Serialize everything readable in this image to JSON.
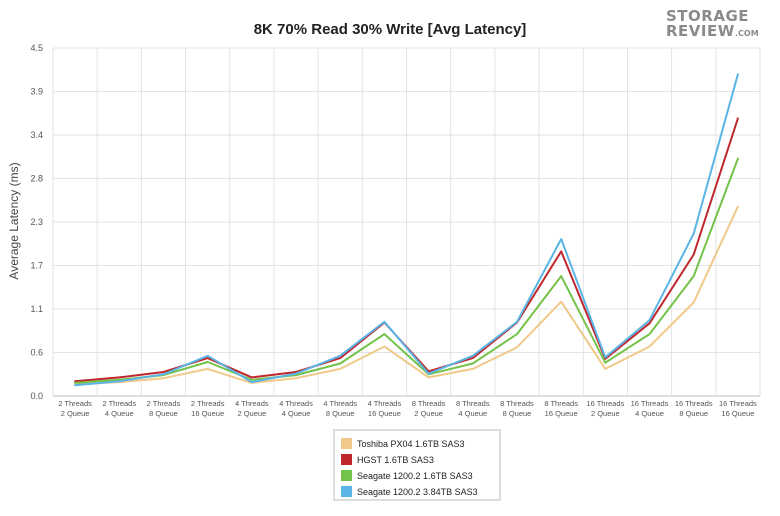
{
  "chart_data": {
    "type": "line",
    "title": "8K 70% Read 30% Write [Avg Latency]",
    "xlabel": "",
    "ylabel": "Average Latency (ms)",
    "ylim": [
      0.0,
      4.5
    ],
    "yticks": [
      "0.0",
      "0.6",
      "1.1",
      "1.7",
      "2.3",
      "2.8",
      "3.4",
      "3.9",
      "4.5"
    ],
    "grid": true,
    "legend_position": "bottom-center",
    "categories": [
      [
        "2 Threads",
        "2 Queue"
      ],
      [
        "2 Threads",
        "4 Queue"
      ],
      [
        "2 Threads",
        "8 Queue"
      ],
      [
        "2 Threads",
        "16 Queue"
      ],
      [
        "4 Threads",
        "2 Queue"
      ],
      [
        "4 Threads",
        "4 Queue"
      ],
      [
        "4 Threads",
        "8 Queue"
      ],
      [
        "4 Threads",
        "16 Queue"
      ],
      [
        "8 Threads",
        "2 Queue"
      ],
      [
        "8 Threads",
        "4 Queue"
      ],
      [
        "8 Threads",
        "8 Queue"
      ],
      [
        "8 Threads",
        "16 Queue"
      ],
      [
        "16 Threads",
        "2 Queue"
      ],
      [
        "16 Threads",
        "4 Queue"
      ],
      [
        "16 Threads",
        "8 Queue"
      ],
      [
        "16 Threads",
        "16 Queue"
      ]
    ],
    "series": [
      {
        "name": "Toshiba PX04 1.6TB SAS3",
        "color": "#f0c98a",
        "values": [
          0.15,
          0.18,
          0.23,
          0.35,
          0.17,
          0.23,
          0.35,
          0.64,
          0.24,
          0.35,
          0.63,
          1.22,
          0.35,
          0.64,
          1.21,
          2.45
        ]
      },
      {
        "name": "HGST 1.6TB SAS3",
        "color": "#c0272d",
        "values": [
          0.19,
          0.24,
          0.31,
          0.49,
          0.24,
          0.31,
          0.49,
          0.95,
          0.32,
          0.49,
          0.95,
          1.87,
          0.48,
          0.94,
          1.83,
          3.59
        ]
      },
      {
        "name": "Seagate 1200.2 1.6TB SAS3",
        "color": "#74c24a",
        "values": [
          0.17,
          0.21,
          0.27,
          0.44,
          0.21,
          0.27,
          0.42,
          0.8,
          0.28,
          0.42,
          0.8,
          1.55,
          0.43,
          0.8,
          1.55,
          3.07
        ]
      },
      {
        "name": "Seagate 1200.2 3.84TB SAS3",
        "color": "#5ab5e6",
        "values": [
          0.14,
          0.19,
          0.28,
          0.52,
          0.18,
          0.29,
          0.52,
          0.96,
          0.29,
          0.52,
          0.96,
          2.03,
          0.5,
          0.98,
          2.1,
          4.16
        ]
      }
    ]
  },
  "logo": {
    "line1": "STORAGE",
    "line2": "REVIEW",
    "suffix": ".COM"
  }
}
